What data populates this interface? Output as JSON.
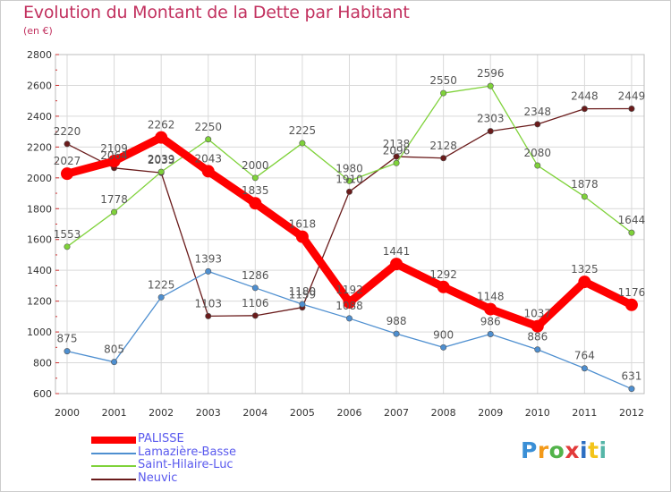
{
  "header": {
    "title": "Evolution du Montant de la Dette par Habitant",
    "subtitle": "(en €)"
  },
  "logo": {
    "text": "Proxiti",
    "letters": [
      "P",
      "r",
      "o",
      "x",
      "i",
      "t",
      "i"
    ]
  },
  "chart_data": {
    "type": "line",
    "title": "Evolution du Montant de la Dette par Habitant",
    "subtitle": "(en €)",
    "xlabel": "",
    "ylabel": "",
    "x": [
      "2000",
      "2001",
      "2002",
      "2003",
      "2004",
      "2005",
      "2006",
      "2007",
      "2008",
      "2009",
      "2010",
      "2011",
      "2012"
    ],
    "ylim": [
      600,
      2800
    ],
    "yticks": [
      600,
      800,
      1000,
      1200,
      1400,
      1600,
      1800,
      2000,
      2200,
      2400,
      2600,
      2800
    ],
    "grid": true,
    "legend": "bottom-left",
    "series": [
      {
        "name": "PALISSE",
        "color": "#ff0000",
        "values": [
          2027,
          2109,
          2262,
          2043,
          1835,
          1618,
          1192,
          1441,
          1292,
          1148,
          1037,
          1325,
          1176
        ]
      },
      {
        "name": "Lamazière-Basse",
        "color": "#4e8fd0",
        "values": [
          875,
          805,
          1225,
          1393,
          1286,
          1180,
          1088,
          988,
          900,
          986,
          886,
          764,
          631
        ]
      },
      {
        "name": "Saint-Hilaire-Luc",
        "color": "#7fd23a",
        "values": [
          1553,
          1778,
          2039,
          2250,
          2000,
          2225,
          1980,
          2096,
          2550,
          2596,
          2080,
          1878,
          1644
        ]
      },
      {
        "name": "Neuvic",
        "color": "#6a1b1b",
        "values": [
          2220,
          2064,
          2033,
          1103,
          1106,
          1159,
          1910,
          2138,
          2128,
          2303,
          2348,
          2448,
          2449
        ]
      }
    ]
  }
}
